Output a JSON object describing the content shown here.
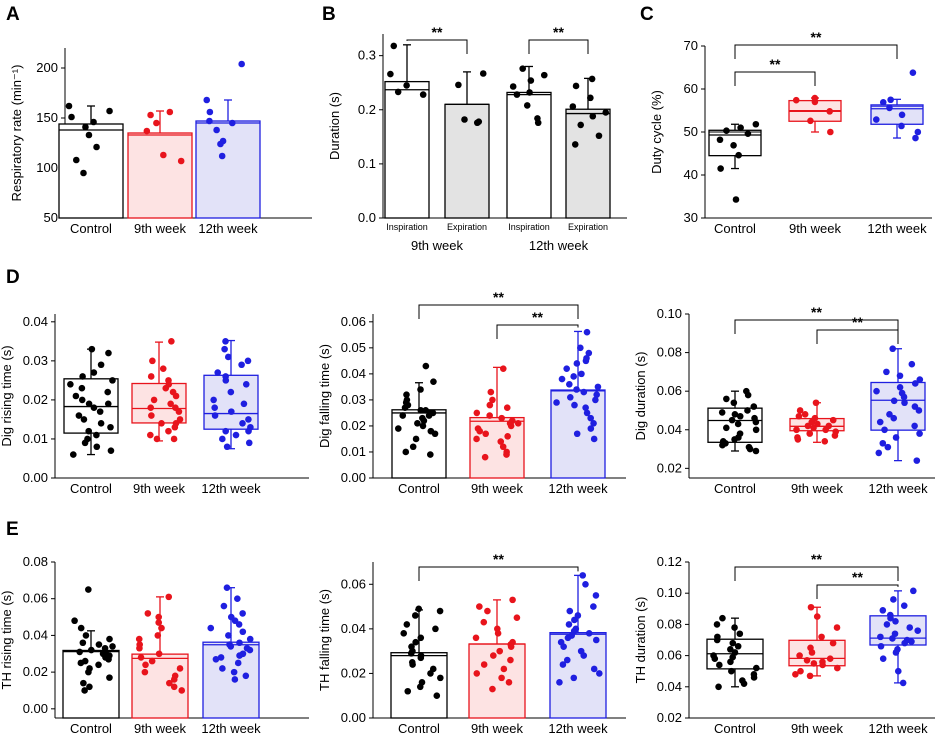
{
  "colors": {
    "control": "#000000",
    "week9": "#e8141c",
    "week12": "#1f1fe0",
    "fill_control": "#ffffff",
    "fill_week9": "#fde3e3",
    "fill_week12": "#e2e2f8",
    "fill_expiration": "#e3e3e3"
  },
  "chart_data": [
    {
      "panel": "A",
      "type": "bar",
      "ylabel": "Respiratory rate (min⁻¹)",
      "ylim": [
        50,
        220
      ],
      "yticks": [
        50,
        100,
        150,
        200
      ],
      "categories": [
        "Control",
        "9th week",
        "12th week"
      ],
      "series": [
        {
          "name": "Control",
          "color": "control",
          "mean": 144,
          "median": 138,
          "err": 162,
          "points": [
            162,
            157,
            151,
            146,
            141,
            133,
            121,
            108,
            95
          ]
        },
        {
          "name": "9th week",
          "color": "week9",
          "mean": 135,
          "median": 133,
          "err": 157,
          "points": [
            156,
            153,
            145,
            137,
            113,
            107
          ]
        },
        {
          "name": "12th week",
          "color": "week12",
          "mean": 147,
          "median": 145,
          "err": 168,
          "points": [
            204,
            168,
            156,
            147,
            145,
            138,
            127,
            124,
            112
          ]
        }
      ]
    },
    {
      "panel": "B",
      "type": "bar",
      "ylabel": "Duration (s)",
      "ylim": [
        0,
        0.34
      ],
      "yticks": [
        0.0,
        0.1,
        0.2,
        0.3
      ],
      "categories": [
        "Inspiration",
        "Expiration",
        "Inspiration",
        "Expiration"
      ],
      "groups": [
        "9th week",
        "12th week"
      ],
      "series": [
        {
          "name": "9th week Inspiration",
          "mean": 0.252,
          "median": 0.237,
          "err": 0.32,
          "points": [
            0.318,
            0.266,
            0.245,
            0.233,
            0.228
          ]
        },
        {
          "name": "9th week Expiration",
          "mean": 0.21,
          "median": 0.21,
          "err": 0.27,
          "points": [
            0.267,
            0.246,
            0.182,
            0.178,
            0.176
          ]
        },
        {
          "name": "12th week Inspiration",
          "mean": 0.232,
          "median": 0.228,
          "err": 0.28,
          "points": [
            0.276,
            0.264,
            0.254,
            0.243,
            0.232,
            0.228,
            0.208,
            0.184,
            0.176
          ]
        },
        {
          "name": "12th week Expiration",
          "mean": 0.201,
          "median": 0.193,
          "err": 0.258,
          "points": [
            0.257,
            0.244,
            0.222,
            0.206,
            0.195,
            0.188,
            0.172,
            0.152,
            0.136
          ]
        }
      ],
      "significance": [
        {
          "from": 0,
          "to": 1,
          "label": "**"
        },
        {
          "from": 2,
          "to": 3,
          "label": "**"
        }
      ]
    },
    {
      "panel": "C",
      "type": "box",
      "ylabel": "Duty cycle (%)",
      "ylim": [
        30,
        70
      ],
      "yticks": [
        30,
        40,
        50,
        60,
        70
      ],
      "categories": [
        "Control",
        "9th week",
        "12th week"
      ],
      "series": [
        {
          "name": "Control",
          "color": "control",
          "q1": 44.5,
          "median": 49.3,
          "mean": 50.0,
          "q3": 50.4,
          "whisker_low": 41.5,
          "whisker_high": 51.8,
          "points": [
            51.8,
            51.0,
            50.3,
            49.6,
            48.2,
            46.9,
            44.6,
            41.5,
            34.3
          ]
        },
        {
          "name": "9th week",
          "color": "week9",
          "q1": 52.5,
          "median": 54.8,
          "mean": 55.0,
          "q3": 57.3,
          "whisker_low": 50.0,
          "whisker_high": 57.9,
          "points": [
            57.9,
            57.4,
            57.0,
            54.8,
            52.6,
            50.0
          ]
        },
        {
          "name": "12th week",
          "color": "week12",
          "q1": 51.8,
          "median": 55.4,
          "mean": 56.0,
          "q3": 56.3,
          "whisker_low": 48.6,
          "whisker_high": 57.6,
          "points": [
            63.8,
            57.5,
            56.9,
            55.6,
            54.0,
            52.9,
            51.4,
            50.0,
            48.6
          ]
        }
      ],
      "significance": [
        {
          "from": 0,
          "to": 1,
          "label": "**"
        },
        {
          "from": 0,
          "to": 2,
          "label": "**"
        }
      ]
    },
    {
      "panel": "D1",
      "type": "box",
      "ylabel": "Dig rising time (s)",
      "ylim": [
        0,
        0.042
      ],
      "yticks": [
        0.0,
        0.01,
        0.02,
        0.03,
        0.04
      ],
      "categories": [
        "Control",
        "9th week",
        "12th week"
      ],
      "series": [
        {
          "name": "Control",
          "color": "control",
          "q1": 0.0115,
          "median": 0.0183,
          "q3": 0.0254,
          "whisker_low": 0.006,
          "whisker_high": 0.033,
          "points": [
            0.033,
            0.032,
            0.029,
            0.027,
            0.026,
            0.025,
            0.024,
            0.023,
            0.022,
            0.021,
            0.02,
            0.019,
            0.019,
            0.018,
            0.017,
            0.016,
            0.015,
            0.014,
            0.013,
            0.012,
            0.011,
            0.01,
            0.009,
            0.008,
            0.007,
            0.006
          ]
        },
        {
          "name": "9th week",
          "color": "week9",
          "q1": 0.0141,
          "median": 0.0178,
          "q3": 0.0242,
          "whisker_low": 0.0095,
          "whisker_high": 0.0348,
          "points": [
            0.035,
            0.03,
            0.028,
            0.026,
            0.025,
            0.024,
            0.023,
            0.022,
            0.021,
            0.02,
            0.019,
            0.018,
            0.018,
            0.017,
            0.016,
            0.015,
            0.014,
            0.014,
            0.013,
            0.012,
            0.011,
            0.01,
            0.01
          ]
        },
        {
          "name": "12th week",
          "color": "week12",
          "q1": 0.0125,
          "median": 0.0165,
          "q3": 0.0263,
          "whisker_low": 0.0075,
          "whisker_high": 0.0352,
          "points": [
            0.035,
            0.033,
            0.031,
            0.03,
            0.029,
            0.027,
            0.026,
            0.025,
            0.024,
            0.022,
            0.02,
            0.019,
            0.018,
            0.017,
            0.016,
            0.015,
            0.014,
            0.013,
            0.012,
            0.012,
            0.011,
            0.01,
            0.009,
            0.008
          ]
        }
      ]
    },
    {
      "panel": "D2",
      "type": "bar",
      "ylabel": "Dig falling time (s)",
      "ylim": [
        0,
        0.063
      ],
      "yticks": [
        0.0,
        0.01,
        0.02,
        0.03,
        0.04,
        0.05,
        0.06
      ],
      "categories": [
        "Control",
        "9th week",
        "12th week"
      ],
      "series": [
        {
          "name": "Control",
          "color": "control",
          "mean": 0.0262,
          "median": 0.025,
          "err": 0.0366,
          "points": [
            0.043,
            0.037,
            0.034,
            0.032,
            0.03,
            0.029,
            0.028,
            0.027,
            0.026,
            0.026,
            0.025,
            0.025,
            0.024,
            0.024,
            0.023,
            0.022,
            0.021,
            0.02,
            0.019,
            0.018,
            0.017,
            0.015,
            0.012,
            0.01,
            0.009
          ]
        },
        {
          "name": "9th week",
          "color": "week9",
          "mean": 0.0232,
          "median": 0.0218,
          "err": 0.0425,
          "points": [
            0.042,
            0.033,
            0.03,
            0.028,
            0.027,
            0.025,
            0.024,
            0.023,
            0.022,
            0.021,
            0.021,
            0.02,
            0.019,
            0.018,
            0.017,
            0.016,
            0.015,
            0.014,
            0.012,
            0.01,
            0.009,
            0.008
          ]
        },
        {
          "name": "12th week",
          "color": "week12",
          "mean": 0.0338,
          "median": 0.0335,
          "err": 0.0563,
          "points": [
            0.056,
            0.05,
            0.048,
            0.046,
            0.045,
            0.044,
            0.042,
            0.04,
            0.039,
            0.038,
            0.036,
            0.035,
            0.034,
            0.033,
            0.032,
            0.031,
            0.03,
            0.029,
            0.028,
            0.027,
            0.025,
            0.023,
            0.021,
            0.019,
            0.017,
            0.015
          ]
        }
      ],
      "significance": [
        {
          "from": 0,
          "to": 2,
          "label": "**"
        },
        {
          "from": 1,
          "to": 2,
          "label": "**"
        }
      ]
    },
    {
      "panel": "D3",
      "type": "box",
      "ylabel": "Dig duration (s)",
      "ylim": [
        0.015,
        0.1
      ],
      "yticks": [
        0.02,
        0.04,
        0.06,
        0.08,
        0.1
      ],
      "categories": [
        "Control",
        "9th week",
        "12th week"
      ],
      "series": [
        {
          "name": "Control",
          "color": "control",
          "q1": 0.0335,
          "median": 0.0448,
          "q3": 0.0512,
          "whisker_low": 0.029,
          "whisker_high": 0.06,
          "points": [
            0.06,
            0.058,
            0.056,
            0.054,
            0.052,
            0.05,
            0.049,
            0.048,
            0.047,
            0.046,
            0.045,
            0.044,
            0.043,
            0.041,
            0.04,
            0.038,
            0.036,
            0.035,
            0.034,
            0.033,
            0.032,
            0.031,
            0.03,
            0.029
          ]
        },
        {
          "name": "9th week",
          "color": "week9",
          "q1": 0.0395,
          "median": 0.0418,
          "q3": 0.0458,
          "whisker_low": 0.0335,
          "whisker_high": 0.054,
          "points": [
            0.054,
            0.05,
            0.048,
            0.047,
            0.046,
            0.045,
            0.044,
            0.043,
            0.042,
            0.042,
            0.041,
            0.04,
            0.04,
            0.039,
            0.038,
            0.037,
            0.036,
            0.035,
            0.034
          ]
        },
        {
          "name": "12th week",
          "color": "week12",
          "q1": 0.0398,
          "median": 0.0553,
          "q3": 0.0645,
          "whisker_low": 0.024,
          "whisker_high": 0.082,
          "points": [
            0.082,
            0.074,
            0.07,
            0.068,
            0.066,
            0.064,
            0.062,
            0.06,
            0.059,
            0.057,
            0.055,
            0.054,
            0.052,
            0.05,
            0.048,
            0.046,
            0.044,
            0.042,
            0.04,
            0.038,
            0.036,
            0.033,
            0.031,
            0.028,
            0.024
          ]
        }
      ],
      "significance": [
        {
          "from": 0,
          "to": 2,
          "label": "**"
        },
        {
          "from": 1,
          "to": 2,
          "label": "**"
        }
      ]
    },
    {
      "panel": "E1",
      "type": "bar",
      "ylabel": "TH rising time (s)",
      "ylim": [
        -0.005,
        0.08
      ],
      "yticks": [
        0.0,
        0.02,
        0.04,
        0.06,
        0.08
      ],
      "categories": [
        "Control",
        "9th week",
        "12th week"
      ],
      "series": [
        {
          "name": "Control",
          "color": "control",
          "mean": 0.0318,
          "median": 0.0312,
          "err": 0.0425,
          "points": [
            0.065,
            0.048,
            0.044,
            0.04,
            0.038,
            0.036,
            0.035,
            0.034,
            0.033,
            0.032,
            0.031,
            0.03,
            0.03,
            0.029,
            0.028,
            0.027,
            0.026,
            0.025,
            0.024,
            0.022,
            0.02,
            0.017,
            0.014,
            0.012,
            0.01
          ]
        },
        {
          "name": "9th week",
          "color": "week9",
          "mean": 0.0298,
          "median": 0.0275,
          "err": 0.061,
          "points": [
            0.061,
            0.052,
            0.05,
            0.047,
            0.044,
            0.04,
            0.038,
            0.035,
            0.033,
            0.03,
            0.028,
            0.026,
            0.024,
            0.022,
            0.02,
            0.018,
            0.016,
            0.014,
            0.012,
            0.01
          ]
        },
        {
          "name": "12th week",
          "color": "week12",
          "mean": 0.0363,
          "median": 0.0349,
          "err": 0.066,
          "points": [
            0.066,
            0.06,
            0.056,
            0.052,
            0.05,
            0.048,
            0.046,
            0.044,
            0.042,
            0.04,
            0.038,
            0.036,
            0.035,
            0.034,
            0.033,
            0.032,
            0.03,
            0.029,
            0.028,
            0.027,
            0.025,
            0.022,
            0.02,
            0.018,
            0.016
          ]
        }
      ]
    },
    {
      "panel": "E2",
      "type": "bar",
      "ylabel": "TH falling time (s)",
      "ylim": [
        0,
        0.07
      ],
      "yticks": [
        0.0,
        0.02,
        0.04,
        0.06
      ],
      "categories": [
        "Control",
        "9th week",
        "12th week"
      ],
      "series": [
        {
          "name": "Control",
          "color": "control",
          "mean": 0.0293,
          "median": 0.028,
          "err": 0.0485,
          "points": [
            0.049,
            0.048,
            0.046,
            0.042,
            0.04,
            0.038,
            0.036,
            0.034,
            0.032,
            0.03,
            0.029,
            0.028,
            0.027,
            0.025,
            0.024,
            0.022,
            0.02,
            0.018,
            0.016,
            0.014,
            0.012,
            0.01
          ]
        },
        {
          "name": "9th week",
          "color": "week9",
          "mean": 0.0332,
          "median": 0.0332,
          "err": 0.053,
          "points": [
            0.053,
            0.05,
            0.048,
            0.045,
            0.043,
            0.04,
            0.038,
            0.036,
            0.034,
            0.033,
            0.032,
            0.03,
            0.028,
            0.026,
            0.024,
            0.022,
            0.02,
            0.018,
            0.016,
            0.013
          ]
        },
        {
          "name": "12th week",
          "color": "week12",
          "mean": 0.0383,
          "median": 0.0376,
          "err": 0.064,
          "points": [
            0.064,
            0.06,
            0.055,
            0.05,
            0.048,
            0.046,
            0.044,
            0.042,
            0.04,
            0.039,
            0.038,
            0.037,
            0.036,
            0.035,
            0.034,
            0.032,
            0.03,
            0.028,
            0.026,
            0.024,
            0.022,
            0.02,
            0.018,
            0.016
          ]
        }
      ],
      "significance": [
        {
          "from": 0,
          "to": 2,
          "label": "**"
        }
      ]
    },
    {
      "panel": "E3",
      "type": "box",
      "ylabel": "TH duration (s)",
      "ylim": [
        0.02,
        0.12
      ],
      "yticks": [
        0.02,
        0.04,
        0.06,
        0.08,
        0.1,
        0.12
      ],
      "categories": [
        "Control",
        "9th week",
        "12th week"
      ],
      "series": [
        {
          "name": "Control",
          "color": "control",
          "q1": 0.0515,
          "median": 0.0612,
          "q3": 0.0705,
          "whisker_low": 0.04,
          "whisker_high": 0.084,
          "points": [
            0.084,
            0.08,
            0.078,
            0.074,
            0.072,
            0.07,
            0.068,
            0.066,
            0.064,
            0.062,
            0.06,
            0.059,
            0.058,
            0.056,
            0.054,
            0.052,
            0.05,
            0.048,
            0.046,
            0.044,
            0.042,
            0.04
          ]
        },
        {
          "name": "9th week",
          "color": "week9",
          "q1": 0.0535,
          "median": 0.0582,
          "q3": 0.0698,
          "whisker_low": 0.047,
          "whisker_high": 0.091,
          "points": [
            0.091,
            0.085,
            0.078,
            0.072,
            0.068,
            0.065,
            0.062,
            0.06,
            0.058,
            0.057,
            0.056,
            0.055,
            0.054,
            0.052,
            0.05,
            0.048,
            0.047
          ]
        },
        {
          "name": "12th week",
          "color": "week12",
          "q1": 0.0668,
          "median": 0.0712,
          "q3": 0.0855,
          "whisker_low": 0.0425,
          "whisker_high": 0.1015,
          "points": [
            0.1015,
            0.096,
            0.092,
            0.089,
            0.086,
            0.084,
            0.082,
            0.08,
            0.078,
            0.076,
            0.074,
            0.072,
            0.071,
            0.07,
            0.069,
            0.068,
            0.066,
            0.064,
            0.062,
            0.058,
            0.05,
            0.0425
          ]
        }
      ],
      "significance": [
        {
          "from": 0,
          "to": 2,
          "label": "**"
        },
        {
          "from": 1,
          "to": 2,
          "label": "**"
        }
      ]
    }
  ],
  "panel_letters": [
    "A",
    "B",
    "C",
    "D",
    "E"
  ],
  "group_labels": {
    "week9": "9th week",
    "week12": "12th week"
  }
}
